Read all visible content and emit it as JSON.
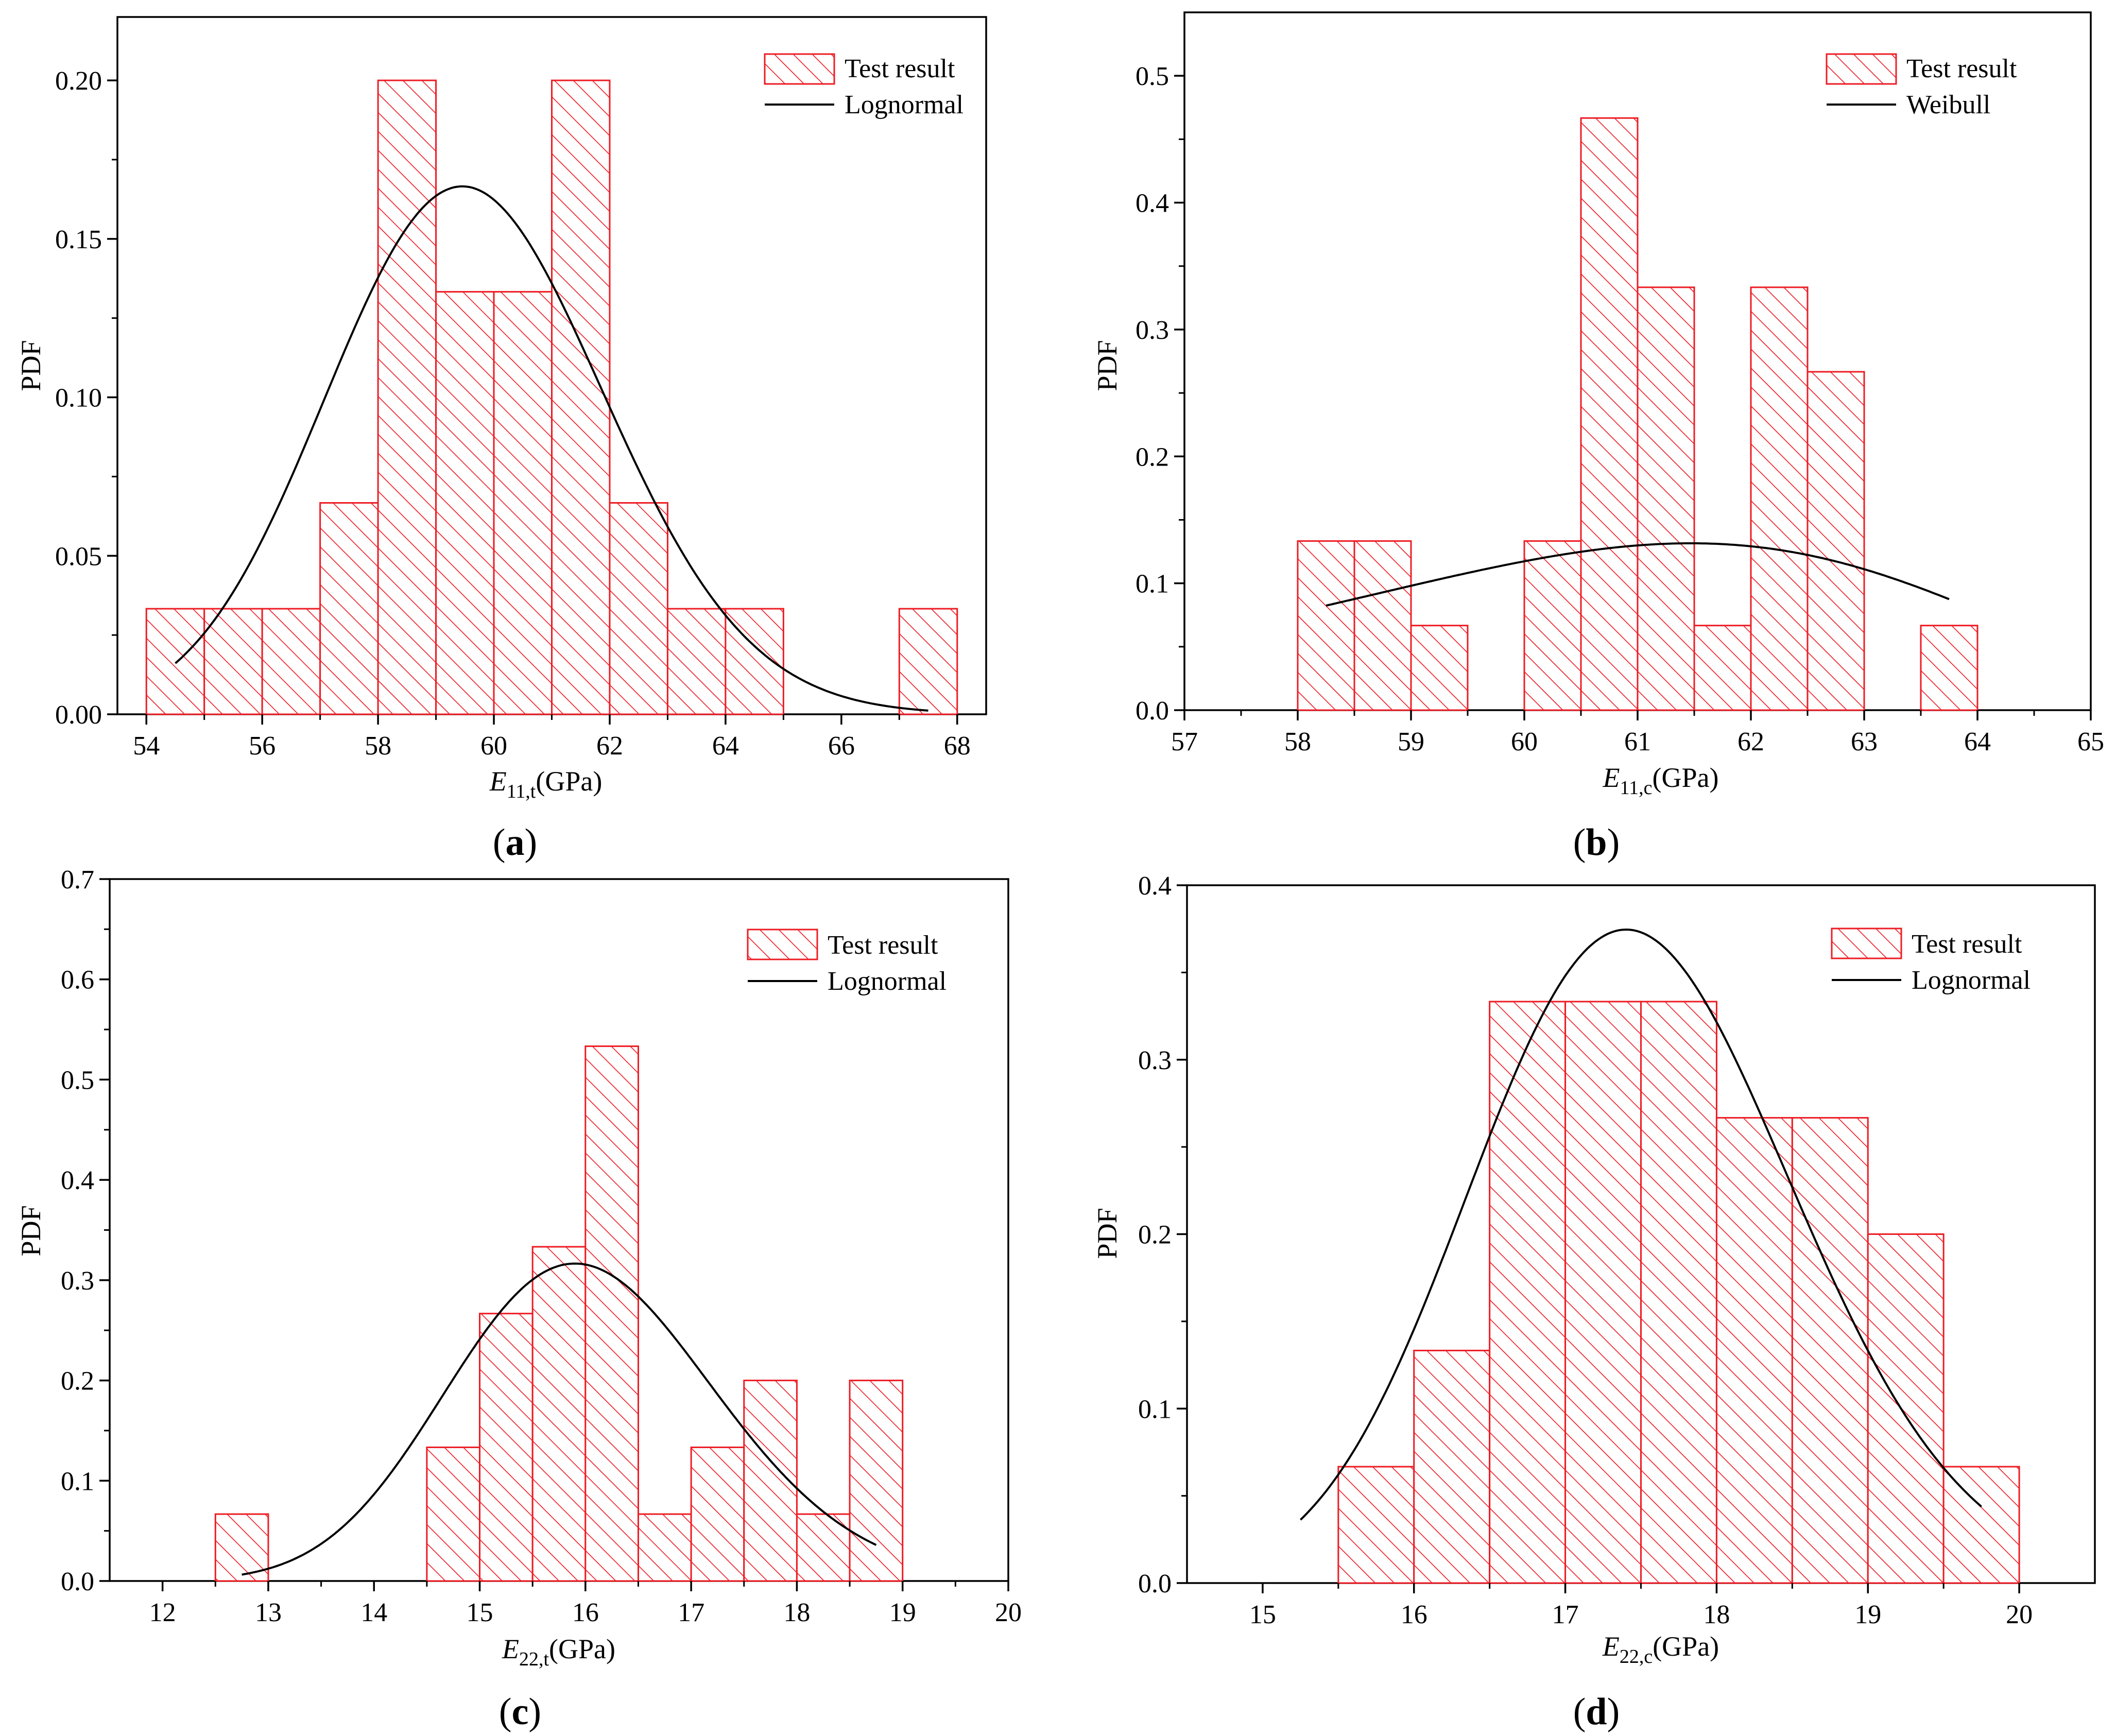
{
  "chart_data": [
    {
      "type": "bar",
      "panel_label": "a",
      "title": "",
      "ylabel": "PDF",
      "xlabel": {
        "main": "E",
        "sub": "11,t",
        "unit": "(GPa)"
      },
      "xlim": [
        53.5,
        68.5
      ],
      "ylim": [
        0,
        0.22
      ],
      "xticks": [
        54,
        56,
        58,
        60,
        62,
        64,
        66,
        68
      ],
      "yticks": [
        "0.00",
        "0.05",
        "0.10",
        "0.15",
        "0.20"
      ],
      "bin_edges": [
        54,
        55,
        56,
        57,
        58,
        59,
        60,
        61,
        62,
        63,
        64,
        65,
        66,
        67,
        68
      ],
      "values": [
        0.0333,
        0.0333,
        0.0333,
        0.0667,
        0.2,
        0.1333,
        0.1333,
        0.2,
        0.0667,
        0.0333,
        0.0333,
        0,
        0,
        0.0333
      ],
      "fit": {
        "name": "Lognormal",
        "dist": "lognormal",
        "mean": 59.6,
        "sd": 2.4,
        "x_from": 54.5,
        "x_to": 67.5
      },
      "legend": [
        "Test result",
        "Lognormal"
      ],
      "legend_position": "top-right"
    },
    {
      "type": "bar",
      "panel_label": "b",
      "title": "",
      "ylabel": "PDF",
      "xlabel": {
        "main": "E",
        "sub": "11,c",
        "unit": "(GPa)"
      },
      "xlim": [
        57,
        65
      ],
      "ylim": [
        0,
        0.55
      ],
      "xticks": [
        57,
        58,
        59,
        60,
        61,
        62,
        63,
        64,
        65
      ],
      "yticks": [
        "0.0",
        "0.1",
        "0.2",
        "0.3",
        "0.4",
        "0.5"
      ],
      "bin_edges": [
        58,
        58.5,
        59,
        59.5,
        60,
        60.5,
        61,
        61.5,
        62,
        62.5,
        63,
        63.5,
        64
      ],
      "values": [
        0.1333,
        0.1333,
        0.0667,
        0,
        0.1333,
        0.4667,
        0.3333,
        0.0667,
        0.3333,
        0.2667,
        0,
        0.0667
      ],
      "fit": {
        "name": "Weibull",
        "dist": "weibull",
        "shape": 22,
        "scale": 61.6,
        "x_from": 58.25,
        "x_to": 63.75
      },
      "legend": [
        "Test result",
        "Weibull"
      ],
      "legend_position": "top-right"
    },
    {
      "type": "bar",
      "panel_label": "c",
      "title": "",
      "ylabel": "PDF",
      "xlabel": {
        "main": "E",
        "sub": "22,t",
        "unit": "(GPa)"
      },
      "xlim": [
        11.5,
        20
      ],
      "ylim": [
        0,
        0.7
      ],
      "xticks": [
        12,
        13,
        14,
        15,
        16,
        17,
        18,
        19,
        20
      ],
      "yticks": [
        "0.0",
        "0.1",
        "0.2",
        "0.3",
        "0.4",
        "0.5",
        "0.6",
        "0.7"
      ],
      "bin_edges": [
        12.5,
        13,
        13.5,
        14,
        14.5,
        15,
        15.5,
        16,
        16.5,
        17,
        17.5,
        18,
        18.5,
        19
      ],
      "values": [
        0.0667,
        0,
        0,
        0,
        0.1333,
        0.2667,
        0.3333,
        0.5333,
        0.0667,
        0.1333,
        0.2,
        0.0667,
        0.2
      ],
      "fit": {
        "name": "Lognormal",
        "dist": "lognormal",
        "mean": 16.05,
        "sd": 1.27,
        "x_from": 12.75,
        "x_to": 18.75
      },
      "legend": [
        "Test result",
        "Lognormal"
      ],
      "legend_position": "top-right"
    },
    {
      "type": "bar",
      "panel_label": "d",
      "title": "",
      "ylabel": "PDF",
      "xlabel": {
        "main": "E",
        "sub": "22,c",
        "unit": "(GPa)"
      },
      "xlim": [
        14.5,
        20.5
      ],
      "ylim": [
        0,
        0.4
      ],
      "xticks": [
        15,
        16,
        17,
        18,
        19,
        20
      ],
      "yticks": [
        "0.0",
        "0.1",
        "0.2",
        "0.3",
        "0.4"
      ],
      "bin_edges": [
        15.5,
        16,
        16.5,
        17,
        17.5,
        18,
        18.5,
        19,
        19.5,
        20
      ],
      "values": [
        0.0667,
        0.1333,
        0.3333,
        0.3333,
        0.3333,
        0.2667,
        0.2667,
        0.2,
        0.0667
      ],
      "fit": {
        "name": "Lognormal",
        "dist": "lognormal",
        "mean": 17.5,
        "sd": 1.07,
        "x_from": 15.25,
        "x_to": 19.75
      },
      "legend": [
        "Test result",
        "Lognormal"
      ],
      "legend_position": "top-right"
    }
  ],
  "colors": {
    "bar": "#ee1c24",
    "fit": "#000000",
    "axis": "#000000"
  }
}
